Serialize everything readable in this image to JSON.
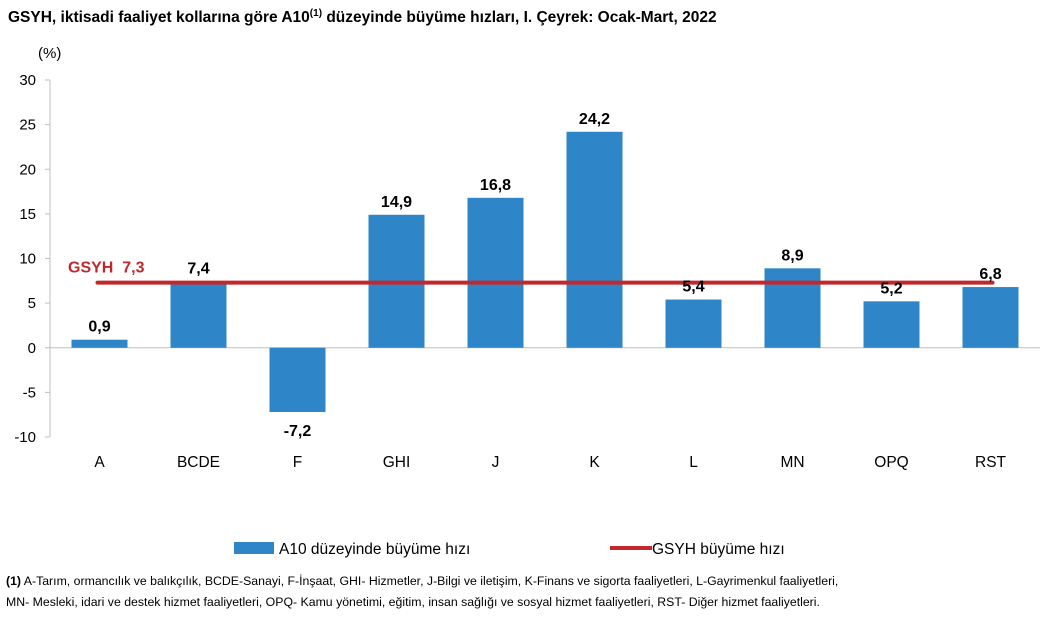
{
  "title": {
    "main": "GSYH, iktisadi faaliyet kollarına göre A10",
    "superscript": "(1)",
    "rest": " düzeyinde büyüme hızları, I. Çeyrek: Ocak-Mart, 2022"
  },
  "chart_data": {
    "type": "bar",
    "unit_label": "(%)",
    "categories": [
      "A",
      "BCDE",
      "F",
      "GHI",
      "J",
      "K",
      "L",
      "MN",
      "OPQ",
      "RST"
    ],
    "series": [
      {
        "name": "A10 düzeyinde büyüme hızı",
        "type": "bar",
        "color": "#2e86c8",
        "values": [
          0.9,
          7.4,
          -7.2,
          14.9,
          16.8,
          24.2,
          5.4,
          8.9,
          5.2,
          6.8
        ],
        "data_labels": [
          "0,9",
          "7,4",
          "-7,2",
          "14,9",
          "16,8",
          "24,2",
          "5,4",
          "8,9",
          "5,2",
          "6,8"
        ]
      },
      {
        "name": "GSYH büyüme hızı",
        "type": "line",
        "color": "#c0282d",
        "value": 7.3,
        "annotation": "GSYH  7,3"
      }
    ],
    "ylim": [
      -10,
      30
    ],
    "yticks": [
      -10,
      -5,
      0,
      5,
      10,
      15,
      20,
      25,
      30
    ],
    "ytick_labels": [
      "-10",
      "-5",
      "0",
      "5",
      "10",
      "15",
      "20",
      "25",
      "30"
    ],
    "xlabel": "",
    "ylabel": "(%)",
    "legend_position": "bottom"
  },
  "footnote": {
    "marker": "(1)",
    "text_line1": " A-Tarım, ormancılık ve balıkçılık, BCDE-Sanayi, F-İnşaat, GHI- Hizmetler, J-Bilgi ve iletişim, K-Finans ve sigorta faaliyetleri, L-Gayrimenkul faaliyetleri,",
    "text_line2": "MN- Mesleki, idari ve destek hizmet faaliyetleri, OPQ- Kamu yönetimi, eğitim, insan sağlığı ve sosyal hizmet faaliyetleri, RST- Diğer hizmet faaliyetleri."
  }
}
